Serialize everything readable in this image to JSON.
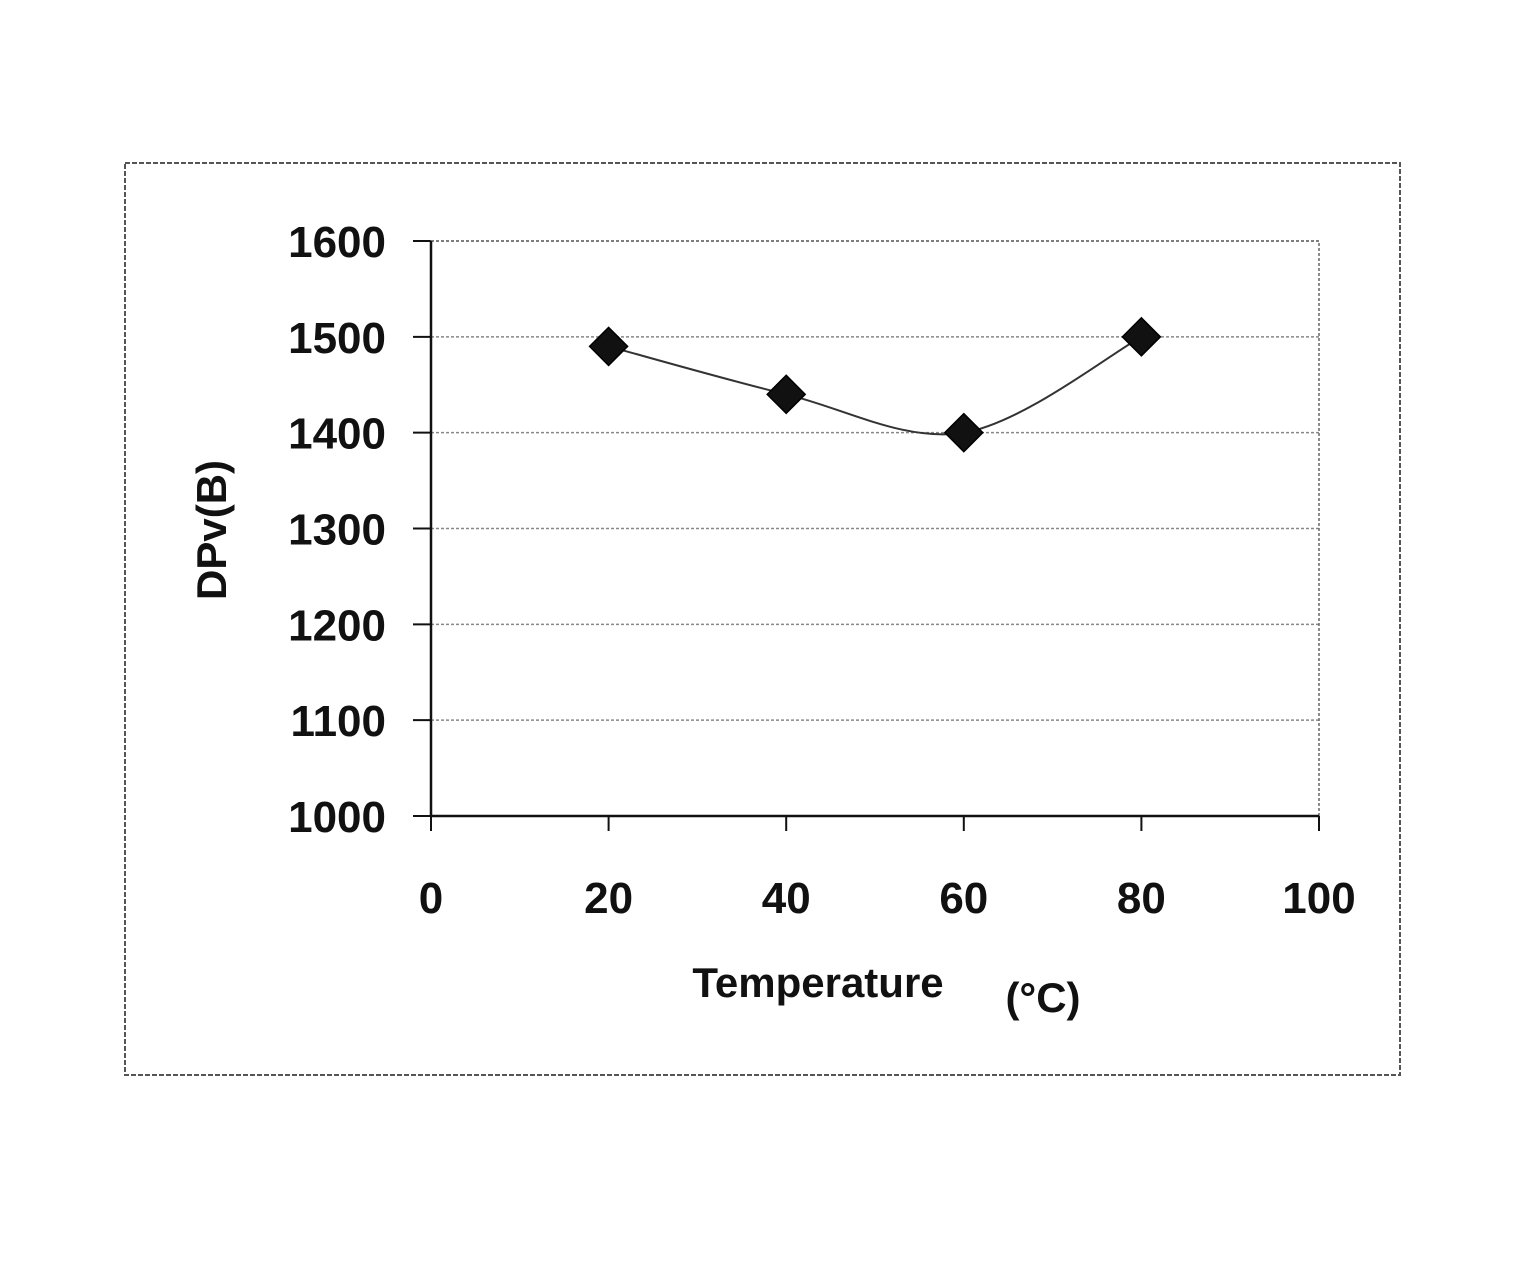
{
  "chart_data": {
    "type": "line",
    "title": "",
    "xlabel": "Temperature",
    "xlabel_unit": "(°C)",
    "ylabel": "DPv(B)",
    "xlim": [
      0,
      100
    ],
    "ylim": [
      1000,
      1600
    ],
    "x_ticks": [
      "0",
      "20",
      "40",
      "60",
      "80",
      "100"
    ],
    "y_ticks": [
      "1600",
      "1500",
      "1400",
      "1300",
      "1200",
      "1100",
      "1000"
    ],
    "grid": true,
    "series": [
      {
        "marker": "diamond",
        "smoothed": true,
        "points": [
          {
            "x": 20,
            "y": 1490
          },
          {
            "x": 40,
            "y": 1440
          },
          {
            "x": 60,
            "y": 1400
          },
          {
            "x": 80,
            "y": 1500
          }
        ]
      }
    ],
    "colors": {
      "marker": "#111111",
      "line": "#333333",
      "grid": "#888888",
      "frame": "#555555"
    }
  }
}
